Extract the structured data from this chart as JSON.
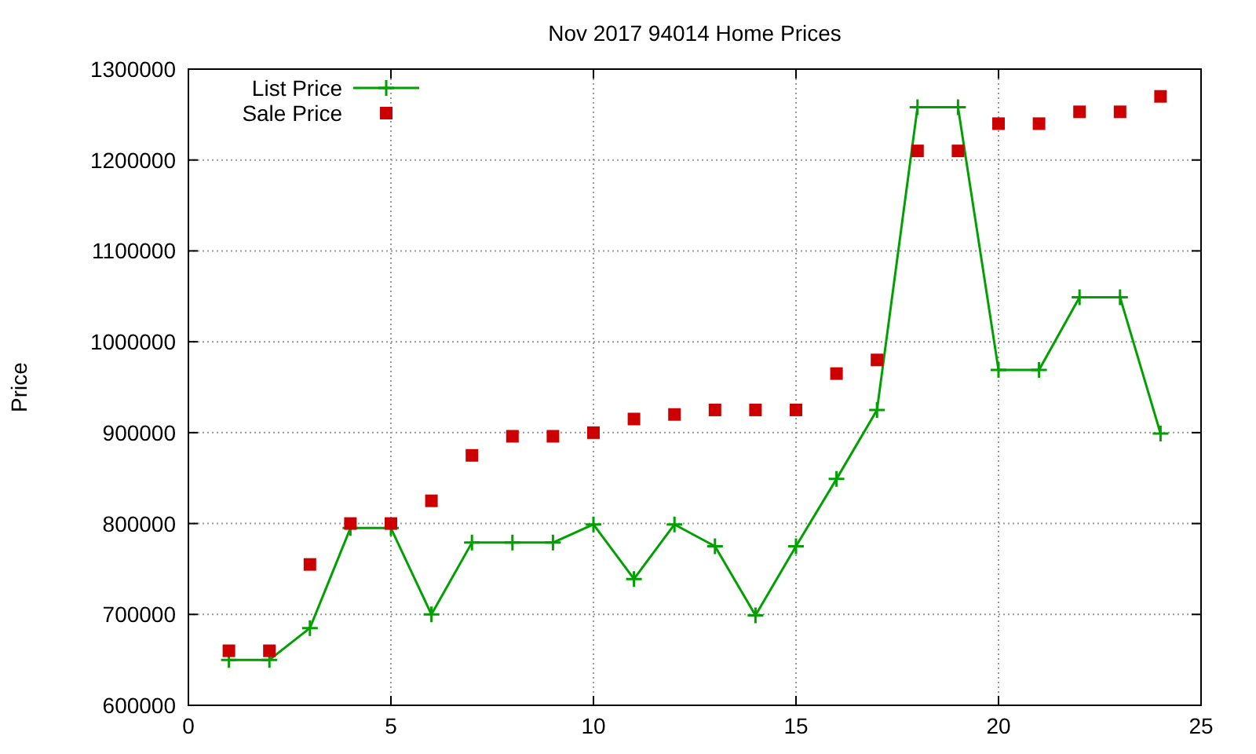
{
  "chart_data": {
    "type": "line",
    "title": "Nov 2017 94014 Home Prices",
    "ylabel": "Price",
    "xlim": [
      0,
      25
    ],
    "xticks": [
      0,
      5,
      10,
      15,
      20,
      25
    ],
    "ylim": [
      600000,
      1300000
    ],
    "yticks": [
      600000,
      700000,
      800000,
      900000,
      1000000,
      1100000,
      1200000,
      1300000
    ],
    "grid": true,
    "legend": "top left",
    "series": [
      {
        "name": "List Price",
        "color": "#00a000",
        "marker": "cross",
        "line_style": "solid",
        "x": [
          1,
          2,
          3,
          4,
          5,
          6,
          7,
          8,
          9,
          10,
          11,
          12,
          13,
          14,
          15,
          16,
          17,
          18,
          19,
          20,
          21,
          22,
          23,
          24
        ],
        "values": [
          650000,
          650000,
          685000,
          795000,
          795000,
          700000,
          779000,
          779000,
          779000,
          799000,
          739000,
          799000,
          775000,
          699000,
          775000,
          849000,
          925000,
          1258000,
          1258000,
          969000,
          969000,
          1049000,
          1049000,
          899000
        ]
      },
      {
        "name": "Sale Price",
        "type": "scatter",
        "color": "#cc0000",
        "marker": "square",
        "x": [
          1,
          2,
          3,
          4,
          5,
          6,
          7,
          8,
          9,
          10,
          11,
          12,
          13,
          14,
          15,
          16,
          17,
          18,
          19,
          20,
          21,
          22,
          23,
          24
        ],
        "values": [
          660000,
          660000,
          755000,
          800000,
          800000,
          825000,
          875000,
          896000,
          896000,
          900000,
          915000,
          920000,
          925000,
          925000,
          925000,
          965000,
          980000,
          1210000,
          1210000,
          1240000,
          1240000,
          1253000,
          1253000,
          1270000
        ]
      }
    ]
  }
}
